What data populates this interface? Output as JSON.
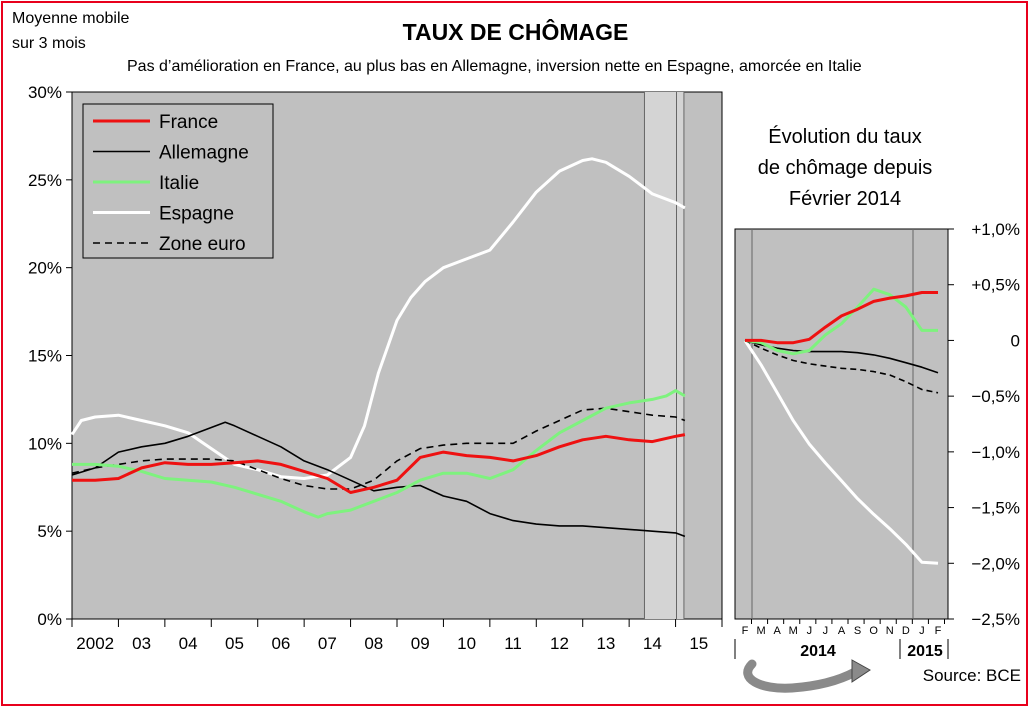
{
  "header": {
    "note_line1": "Moyenne mobile",
    "note_line2": "sur 3 mois",
    "title": "TAUX DE CHÔMAGE",
    "subtitle": "Pas d’amélioration en France, au plus bas en Allemagne, inversion nette en Espagne, amorcée en Italie"
  },
  "inset_title": [
    "Évolution du taux",
    "de chômage depuis",
    "Février 2014"
  ],
  "source": "Source: BCE",
  "colors": {
    "France": "#ee1111",
    "Allemagne": "#000000",
    "Italie": "#7ef27e",
    "Espagne": "#ffffff",
    "Zone euro": "#000000",
    "plot_bg": "#c0c0c0",
    "shade_bg": "#d4d4d4",
    "frame": "#e8001c"
  },
  "chart_data": [
    {
      "type": "line",
      "ylim": [
        0,
        30
      ],
      "xlim": [
        2002.0,
        2016.0
      ],
      "yticks": [
        "0%",
        "5%",
        "10%",
        "15%",
        "20%",
        "25%",
        "30%"
      ],
      "xticks": [
        "2002",
        "03",
        "04",
        "05",
        "06",
        "07",
        "08",
        "09",
        "10",
        "11",
        "12",
        "13",
        "14",
        "15"
      ],
      "shaded_from": 2014.33,
      "legend_placement": "top-left",
      "grid": false,
      "series": [
        {
          "name": "France",
          "x": [
            2002.0,
            2002.5,
            2003.0,
            2003.5,
            2004.0,
            2004.5,
            2005.0,
            2005.5,
            2006.0,
            2006.5,
            2007.0,
            2007.5,
            2008.0,
            2008.5,
            2009.0,
            2009.5,
            2010.0,
            2010.5,
            2011.0,
            2011.5,
            2012.0,
            2012.5,
            2013.0,
            2013.5,
            2014.0,
            2014.5,
            2015.0,
            2015.2
          ],
          "y": [
            7.9,
            7.9,
            8.0,
            8.6,
            8.9,
            8.8,
            8.8,
            8.9,
            9.0,
            8.8,
            8.4,
            8.0,
            7.2,
            7.5,
            7.9,
            9.2,
            9.5,
            9.3,
            9.2,
            9.0,
            9.3,
            9.8,
            10.2,
            10.4,
            10.2,
            10.1,
            10.4,
            10.5
          ]
        },
        {
          "name": "Allemagne",
          "x": [
            2002.0,
            2002.5,
            2003.0,
            2003.5,
            2004.0,
            2004.5,
            2005.0,
            2005.3,
            2005.5,
            2006.0,
            2006.5,
            2007.0,
            2007.5,
            2008.0,
            2008.5,
            2009.0,
            2009.5,
            2010.0,
            2010.5,
            2011.0,
            2011.5,
            2012.0,
            2012.5,
            2013.0,
            2013.5,
            2014.0,
            2014.5,
            2015.0,
            2015.2
          ],
          "y": [
            8.2,
            8.6,
            9.5,
            9.8,
            10.0,
            10.4,
            10.9,
            11.2,
            11.0,
            10.4,
            9.8,
            9.0,
            8.5,
            7.9,
            7.3,
            7.5,
            7.6,
            7.0,
            6.7,
            6.0,
            5.6,
            5.4,
            5.3,
            5.3,
            5.2,
            5.1,
            5.0,
            4.9,
            4.7
          ]
        },
        {
          "name": "Italie",
          "x": [
            2002.0,
            2002.5,
            2003.0,
            2003.5,
            2004.0,
            2004.5,
            2005.0,
            2005.5,
            2006.0,
            2006.5,
            2007.0,
            2007.3,
            2007.5,
            2008.0,
            2008.5,
            2009.0,
            2009.5,
            2010.0,
            2010.5,
            2011.0,
            2011.5,
            2012.0,
            2012.5,
            2013.0,
            2013.5,
            2014.0,
            2014.5,
            2014.8,
            2015.0,
            2015.2
          ],
          "y": [
            8.8,
            8.8,
            8.7,
            8.4,
            8.0,
            7.9,
            7.8,
            7.5,
            7.1,
            6.7,
            6.1,
            5.8,
            6.0,
            6.2,
            6.7,
            7.2,
            7.9,
            8.3,
            8.3,
            8.0,
            8.5,
            9.6,
            10.6,
            11.3,
            12.0,
            12.3,
            12.5,
            12.7,
            13.0,
            12.7
          ]
        },
        {
          "name": "Espagne",
          "x": [
            2002.0,
            2002.2,
            2002.5,
            2003.0,
            2003.5,
            2004.0,
            2004.5,
            2005.0,
            2005.5,
            2006.0,
            2006.5,
            2007.0,
            2007.5,
            2008.0,
            2008.3,
            2008.6,
            2009.0,
            2009.3,
            2009.6,
            2010.0,
            2010.5,
            2011.0,
            2011.5,
            2012.0,
            2012.5,
            2013.0,
            2013.2,
            2013.5,
            2014.0,
            2014.5,
            2015.0,
            2015.2
          ],
          "y": [
            10.5,
            11.3,
            11.5,
            11.6,
            11.3,
            11.0,
            10.6,
            9.7,
            8.8,
            8.5,
            8.1,
            8.0,
            8.2,
            9.2,
            11.0,
            14.0,
            17.0,
            18.3,
            19.2,
            20.0,
            20.5,
            21.0,
            22.6,
            24.3,
            25.5,
            26.1,
            26.2,
            26.0,
            25.2,
            24.2,
            23.7,
            23.4
          ]
        },
        {
          "name": "Zone euro",
          "dashed": true,
          "x": [
            2002.0,
            2002.5,
            2003.0,
            2003.5,
            2004.0,
            2004.5,
            2005.0,
            2005.5,
            2006.0,
            2006.5,
            2007.0,
            2007.5,
            2008.0,
            2008.5,
            2009.0,
            2009.5,
            2010.0,
            2010.5,
            2011.0,
            2011.5,
            2012.0,
            2012.5,
            2013.0,
            2013.5,
            2014.0,
            2014.5,
            2015.0,
            2015.2
          ],
          "y": [
            8.3,
            8.6,
            8.8,
            9.0,
            9.1,
            9.1,
            9.1,
            9.0,
            8.5,
            8.0,
            7.6,
            7.4,
            7.4,
            7.9,
            9.0,
            9.7,
            9.9,
            10.0,
            10.0,
            10.0,
            10.7,
            11.3,
            11.9,
            12.0,
            11.8,
            11.6,
            11.5,
            11.3
          ]
        }
      ]
    },
    {
      "type": "line",
      "title": "Évolution du taux de chômage depuis Février 2014",
      "ylim": [
        -2.5,
        1.0
      ],
      "yticks": [
        "+1,0%",
        "+0,5%",
        "0",
        "−0,5%",
        "−1,0%",
        "−1,5%",
        "−2,0%",
        "−2,5%"
      ],
      "xticks": [
        "F",
        "M",
        "A",
        "M",
        "J",
        "J",
        "A",
        "S",
        "O",
        "N",
        "D",
        "J",
        "F"
      ],
      "year_labels": [
        "2014",
        "2015"
      ],
      "series": [
        {
          "name": "France",
          "y": [
            0,
            0.0,
            -0.02,
            -0.02,
            0.01,
            0.12,
            0.22,
            0.28,
            0.35,
            0.38,
            0.4,
            0.43,
            0.43
          ]
        },
        {
          "name": "Allemagne",
          "y": [
            0,
            -0.04,
            -0.07,
            -0.09,
            -0.1,
            -0.1,
            -0.1,
            -0.11,
            -0.13,
            -0.16,
            -0.2,
            -0.24,
            -0.29
          ]
        },
        {
          "name": "Italie",
          "y": [
            0,
            -0.02,
            -0.09,
            -0.12,
            -0.09,
            0.05,
            0.15,
            0.3,
            0.46,
            0.41,
            0.3,
            0.09,
            0.09
          ]
        },
        {
          "name": "Espagne",
          "y": [
            0,
            -0.22,
            -0.47,
            -0.72,
            -0.93,
            -1.1,
            -1.26,
            -1.42,
            -1.56,
            -1.69,
            -1.83,
            -1.99,
            -2.0
          ]
        },
        {
          "name": "Zone euro",
          "dashed": true,
          "y": [
            0,
            -0.07,
            -0.13,
            -0.18,
            -0.21,
            -0.23,
            -0.25,
            -0.26,
            -0.28,
            -0.31,
            -0.37,
            -0.44,
            -0.47
          ]
        }
      ]
    }
  ]
}
